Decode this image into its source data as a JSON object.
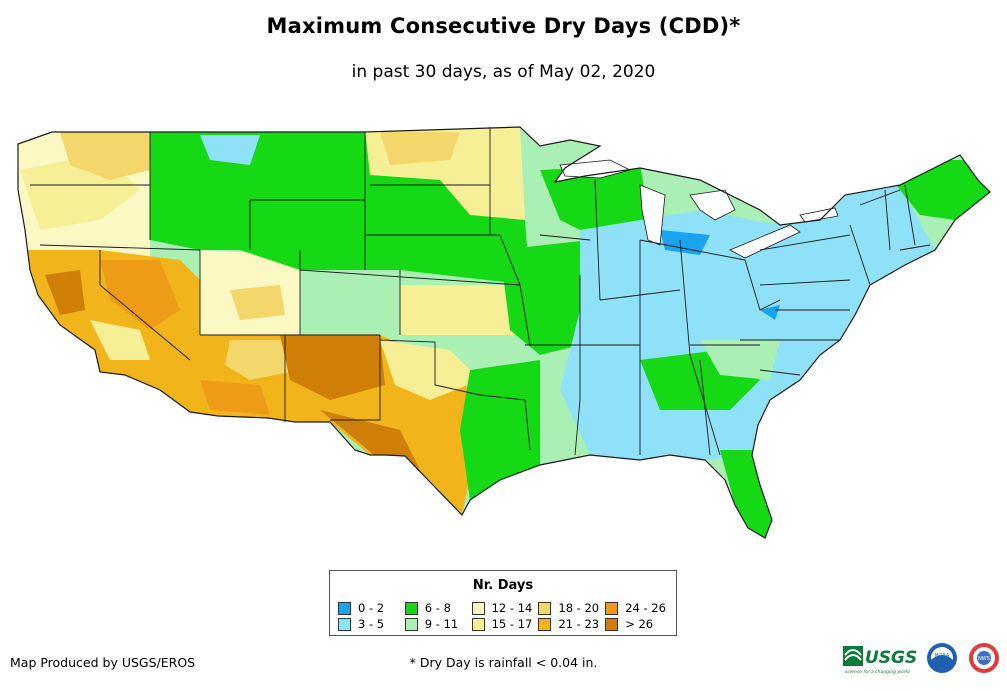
{
  "title": "Maximum Consecutive Dry Days (CDD)*",
  "subtitle": "in past 30 days, as of May 02, 2020",
  "legend": {
    "title": "Nr. Days",
    "items": [
      {
        "label": "0 - 2",
        "color": "#1aa3ef"
      },
      {
        "label": "3 - 5",
        "color": "#8fe1f7"
      },
      {
        "label": "6 - 8",
        "color": "#14d914"
      },
      {
        "label": "9 - 11",
        "color": "#aaf0b4"
      },
      {
        "label": "12 - 14",
        "color": "#fbf8c3"
      },
      {
        "label": "15 - 17",
        "color": "#f6ef96"
      },
      {
        "label": "18 - 20",
        "color": "#f4d76a"
      },
      {
        "label": "21 - 23",
        "color": "#f1b51b"
      },
      {
        "label": "24 - 26",
        "color": "#ee9c17"
      },
      {
        "label": "> 26",
        "color": "#cf7e06"
      }
    ]
  },
  "credit": "Map Produced by USGS/EROS",
  "footnote": "* Dry Day is rainfall < 0.04 in.",
  "logos": {
    "usgs_text": "USGS",
    "usgs_tagline": "science for a changing world",
    "noaa_text": "NOAA",
    "nws_text": "NWS"
  },
  "colors": {
    "boundary": "#1a1a1a"
  }
}
